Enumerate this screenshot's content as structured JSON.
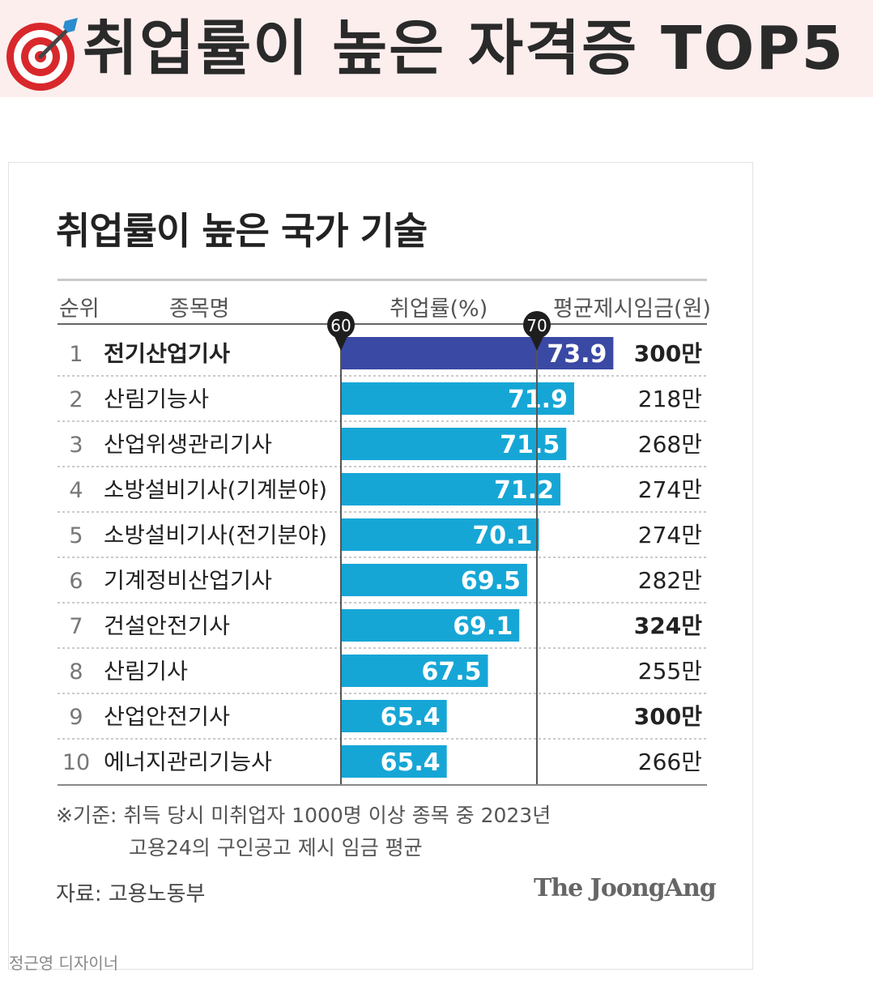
{
  "banner": {
    "title": "취업률이 높은 자격증 TOP5",
    "icon": "target-dart-icon"
  },
  "chart_data": {
    "type": "bar",
    "title": "취업률이 높은 국가 기술",
    "columns": [
      "순위",
      "종목명",
      "취업률(%)",
      "평균제시임금(원)"
    ],
    "axis_start": 60,
    "reference_markers": [
      60,
      70
    ],
    "rows": [
      {
        "rank": "1",
        "name": "전기산업기사",
        "rate": 73.9,
        "label": "73.9",
        "wage": "300만",
        "highlight": true,
        "wage_bold": true
      },
      {
        "rank": "2",
        "name": "산림기능사",
        "rate": 71.9,
        "label": "71.9",
        "wage": "218만",
        "highlight": false,
        "wage_bold": false
      },
      {
        "rank": "3",
        "name": "산업위생관리기사",
        "rate": 71.5,
        "label": "71.5",
        "wage": "268만",
        "highlight": false,
        "wage_bold": false
      },
      {
        "rank": "4",
        "name": "소방설비기사(기계분야)",
        "rate": 71.2,
        "label": "71.2",
        "wage": "274만",
        "highlight": false,
        "wage_bold": false
      },
      {
        "rank": "5",
        "name": "소방설비기사(전기분야)",
        "rate": 70.1,
        "label": "70.1",
        "wage": "274만",
        "highlight": false,
        "wage_bold": false
      },
      {
        "rank": "6",
        "name": "기계정비산업기사",
        "rate": 69.5,
        "label": "69.5",
        "wage": "282만",
        "highlight": false,
        "wage_bold": false
      },
      {
        "rank": "7",
        "name": "건설안전기사",
        "rate": 69.1,
        "label": "69.1",
        "wage": "324만",
        "highlight": false,
        "wage_bold": true
      },
      {
        "rank": "8",
        "name": "산림기사",
        "rate": 67.5,
        "label": "67.5",
        "wage": "255만",
        "highlight": false,
        "wage_bold": false
      },
      {
        "rank": "9",
        "name": "산업안전기사",
        "rate": 65.4,
        "label": "65.4",
        "wage": "300만",
        "highlight": false,
        "wage_bold": true
      },
      {
        "rank": "10",
        "name": "에너지관리기능사",
        "rate": 65.4,
        "label": "65.4",
        "wage": "266만",
        "highlight": false,
        "wage_bold": false
      }
    ],
    "colors": {
      "highlight_bar": "#3a49a3",
      "bar": "#16a6d6"
    }
  },
  "notes": {
    "line1": "※기준: 취득 당시 미취업자 1000명 이상 종목 중 2023년",
    "line2": "고용24의 구인공고 제시 임금 평균"
  },
  "source": "자료: 고용노동부",
  "brand": "The JoongAng",
  "designer": "정근영 디자이너"
}
